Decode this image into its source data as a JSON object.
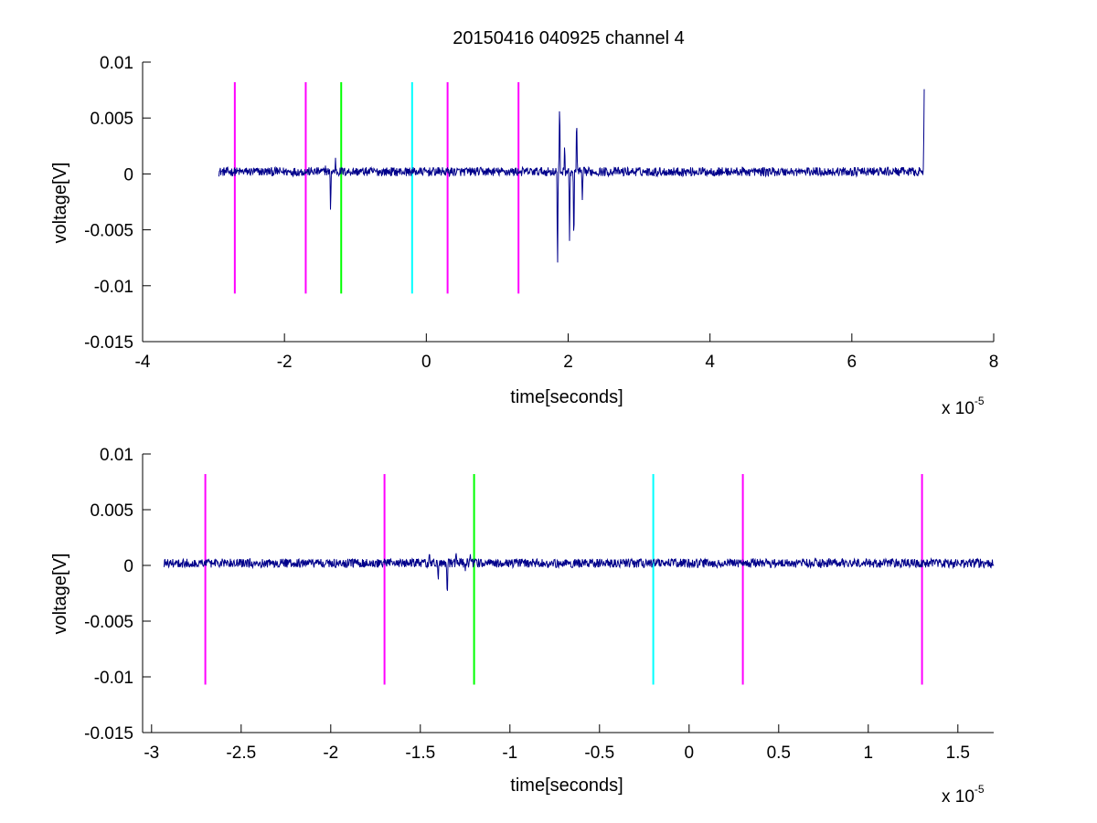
{
  "chart_data": [
    {
      "type": "line",
      "title": "20150416 040925 channel 4",
      "xlabel": "time[seconds]",
      "ylabel": "voltage[V]",
      "x_multiplier": {
        "base": "x 10",
        "exponent": "-5"
      },
      "xlim": [
        -4,
        8
      ],
      "ylim": [
        -0.015,
        0.01
      ],
      "x_ticks": [
        -4,
        -2,
        0,
        2,
        4,
        6,
        8
      ],
      "x_tick_labels": [
        "-4",
        "-2",
        "0",
        "2",
        "4",
        "6",
        "8"
      ],
      "y_ticks": [
        0.01,
        0.005,
        0,
        -0.005,
        -0.01,
        -0.015
      ],
      "y_tick_labels": [
        "0.01",
        "0.005",
        "0",
        "-0.005",
        "-0.01",
        "-0.015"
      ],
      "grid": false,
      "series": [
        {
          "color": "#00008b",
          "x_range": [
            -2.93,
            7.02
          ],
          "baseline": 0.0002,
          "noise": 0.0004,
          "events": [
            {
              "x": -1.35,
              "y": -0.0035
            },
            {
              "x": -1.42,
              "y": 0.0005
            },
            {
              "x": -1.28,
              "y": 0.001
            },
            {
              "x": 1.85,
              "y": -0.0095
            },
            {
              "x": 1.88,
              "y": 0.007
            },
            {
              "x": 1.95,
              "y": 0.0025
            },
            {
              "x": 2.02,
              "y": -0.0065
            },
            {
              "x": 2.08,
              "y": -0.0075
            },
            {
              "x": 2.12,
              "y": 0.0055
            },
            {
              "x": 2.2,
              "y": -0.003
            },
            {
              "x": 7.02,
              "y": 0.0075
            }
          ]
        }
      ],
      "markers": [
        {
          "x": -2.7,
          "color": "#ff00ff"
        },
        {
          "x": -1.7,
          "color": "#ff00ff"
        },
        {
          "x": -1.2,
          "color": "#00ff00"
        },
        {
          "x": -0.2,
          "color": "#00ffff"
        },
        {
          "x": 0.3,
          "color": "#ff00ff"
        },
        {
          "x": 1.3,
          "color": "#ff00ff"
        }
      ],
      "marker_range": [
        -0.0107,
        0.0082
      ]
    },
    {
      "type": "line",
      "title": "",
      "xlabel": "time[seconds]",
      "ylabel": "voltage[V]",
      "x_multiplier": {
        "base": "x 10",
        "exponent": "-5"
      },
      "xlim": [
        -3.05,
        1.7
      ],
      "ylim": [
        -0.015,
        0.01
      ],
      "x_ticks": [
        -3,
        -2.5,
        -2,
        -1.5,
        -1,
        -0.5,
        0,
        0.5,
        1,
        1.5
      ],
      "x_tick_labels": [
        "-3",
        "-2.5",
        "-2",
        "-1.5",
        "-1",
        "-0.5",
        "0",
        "0.5",
        "1",
        "1.5"
      ],
      "y_ticks": [
        0.01,
        0.005,
        0,
        -0.005,
        -0.01,
        -0.015
      ],
      "y_tick_labels": [
        "0.01",
        "0.005",
        "0",
        "-0.005",
        "-0.01",
        "-0.015"
      ],
      "grid": false,
      "series": [
        {
          "color": "#00008b",
          "x_range": [
            -2.93,
            1.7
          ],
          "baseline": 0.0002,
          "noise": 0.0004,
          "events": [
            {
              "x": -1.45,
              "y": 0.0008
            },
            {
              "x": -1.4,
              "y": -0.0015
            },
            {
              "x": -1.35,
              "y": -0.0035
            },
            {
              "x": -1.3,
              "y": 0.0011
            },
            {
              "x": -1.25,
              "y": -0.0008
            },
            {
              "x": -1.22,
              "y": 0.0009
            }
          ]
        }
      ],
      "markers": [
        {
          "x": -2.7,
          "color": "#ff00ff"
        },
        {
          "x": -1.7,
          "color": "#ff00ff"
        },
        {
          "x": -1.2,
          "color": "#00ff00"
        },
        {
          "x": -0.2,
          "color": "#00ffff"
        },
        {
          "x": 0.3,
          "color": "#ff00ff"
        },
        {
          "x": 1.3,
          "color": "#ff00ff"
        }
      ],
      "marker_range": [
        -0.0107,
        0.0082
      ]
    }
  ]
}
